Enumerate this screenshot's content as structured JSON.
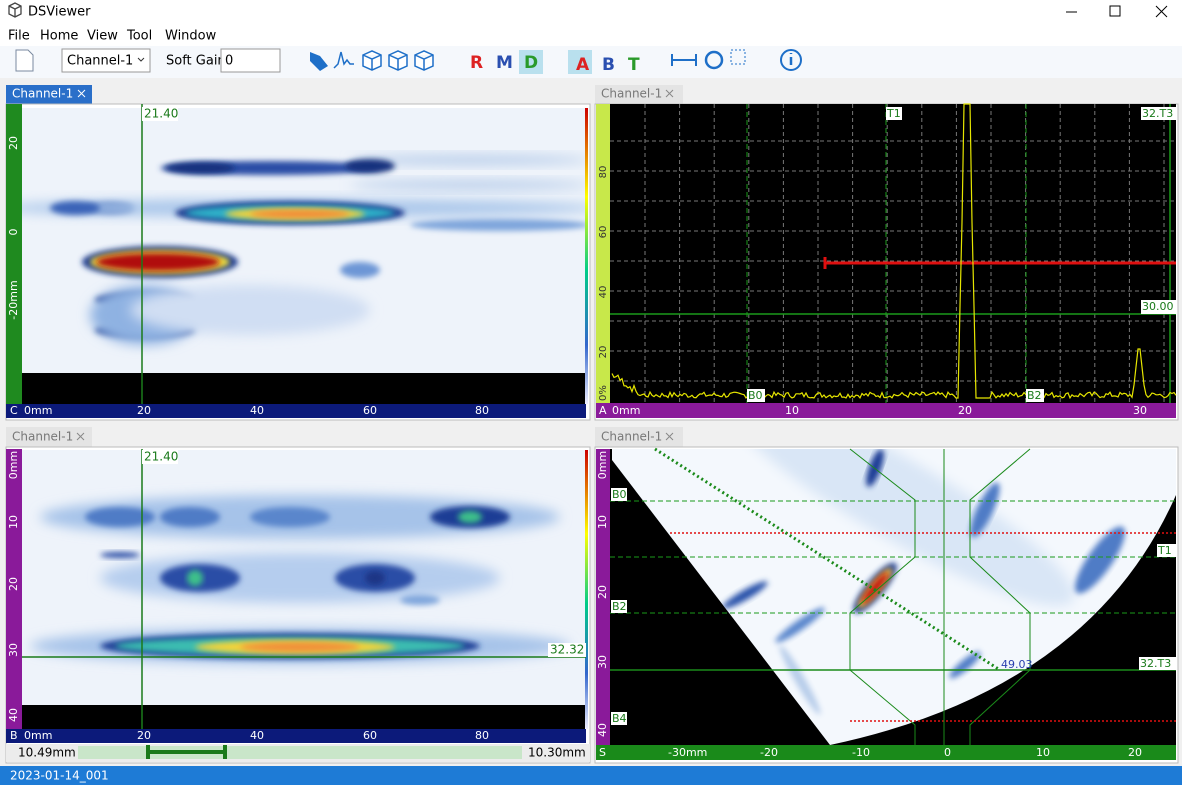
{
  "window": {
    "title": "DSViewer"
  },
  "menu": [
    "File",
    "Home",
    "View",
    "Tool",
    "Window"
  ],
  "toolbar": {
    "channel": "Channel-1",
    "soft_gain_label": "Soft Gain",
    "soft_gain": "0",
    "gate_icons": [
      "R",
      "M",
      "D",
      "A",
      "B",
      "T"
    ]
  },
  "panels": {
    "c_scan": {
      "tab": "Channel-1",
      "corner": "C",
      "cursor": "21.40",
      "y_labels": [
        "20",
        "0",
        "-20mm"
      ],
      "x_labels": [
        "0mm",
        "20",
        "40",
        "60",
        "80"
      ]
    },
    "a_scan": {
      "tab": "Channel-1",
      "corner": "A",
      "gate_labels": [
        "T1",
        "32.T3",
        "30.00",
        "B0",
        "B2"
      ],
      "y_labels": [
        "0%",
        "20",
        "40",
        "60",
        "80"
      ],
      "x_labels": [
        "0mm",
        "10",
        "20",
        "30"
      ]
    },
    "b_scan": {
      "tab": "Channel-1",
      "corner": "B",
      "cursor": "21.40",
      "cursor_y": "32.32",
      "y_labels": [
        "0mm",
        "10",
        "20",
        "30",
        "40"
      ],
      "x_labels": [
        "0mm",
        "20",
        "40",
        "60",
        "80"
      ],
      "scroll_left": "10.49mm",
      "scroll_right": "10.30mm"
    },
    "s_scan": {
      "tab": "Channel-1",
      "corner": "S",
      "gate_labels": [
        "B0",
        "T1",
        "B2",
        "B4",
        "32.T3"
      ],
      "cursor_value": "49.03",
      "y_labels": [
        "0mm",
        "10",
        "20",
        "30",
        "40"
      ],
      "x_labels": [
        "-30mm",
        "-20",
        "-10",
        "0",
        "10",
        "20"
      ]
    }
  },
  "status": "2023-01-14_001"
}
